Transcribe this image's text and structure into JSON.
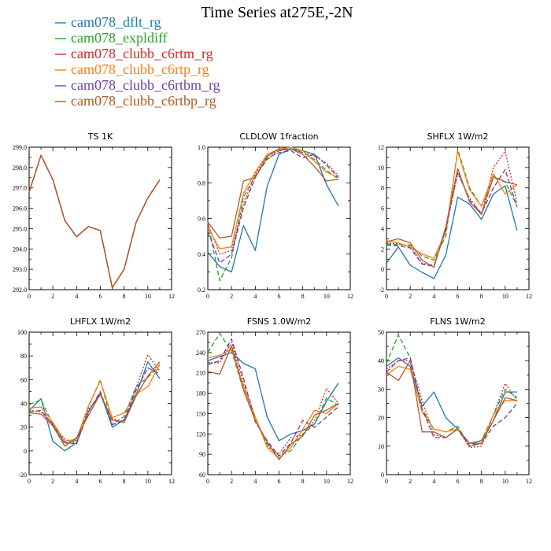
{
  "figure": {
    "title": "Time Series at275E,-2N"
  },
  "legend": [
    {
      "name": "cam078_dflt_rg",
      "color": "#1f77b4",
      "dash": "solid"
    },
    {
      "name": "cam078_expldiff",
      "color": "#2ca02c",
      "dash": "dashed"
    },
    {
      "name": "cam078_clubb_c6rtm_rg",
      "color": "#d62728",
      "dash": "dotted"
    },
    {
      "name": "cam078_clubb_c6rtp_rg",
      "color": "#ff7f0e",
      "dash": "solid"
    },
    {
      "name": "cam078_clubb_c6rtbm_rg",
      "color": "#7040a0",
      "dash": "dashed"
    },
    {
      "name": "cam078_clubb_c6rtbp_rg",
      "color": "#b05a28",
      "dash": "solid"
    }
  ],
  "chart_data": [
    {
      "type": "line",
      "title": "TS   1K",
      "xlim": [
        0,
        12
      ],
      "ylim": [
        292.0,
        299.0
      ],
      "xticks": [
        "0",
        "2",
        "4",
        "6",
        "8",
        "10",
        "12"
      ],
      "yticks": [
        "292.0",
        "293.0",
        "294.0",
        "295.0",
        "296.0",
        "297.0",
        "298.0",
        "299.0"
      ],
      "x": [
        0,
        1,
        2,
        3,
        4,
        5,
        6,
        7,
        8,
        9,
        10,
        11
      ],
      "series": [
        {
          "name": "cam078_dflt_rg",
          "values": [
            296.8,
            298.6,
            297.4,
            295.4,
            294.6,
            295.1,
            294.9,
            292.1,
            293.0,
            295.3,
            296.5,
            297.4
          ]
        },
        {
          "name": "cam078_expldiff",
          "values": [
            296.8,
            298.6,
            297.4,
            295.4,
            294.6,
            295.1,
            294.9,
            292.1,
            293.0,
            295.3,
            296.5,
            297.4
          ]
        },
        {
          "name": "cam078_clubb_c6rtm_rg",
          "values": [
            296.8,
            298.6,
            297.4,
            295.4,
            294.6,
            295.1,
            294.9,
            292.1,
            293.0,
            295.3,
            296.5,
            297.4
          ]
        },
        {
          "name": "cam078_clubb_c6rtp_rg",
          "values": [
            296.8,
            298.6,
            297.4,
            295.4,
            294.6,
            295.1,
            294.9,
            292.1,
            293.0,
            295.3,
            296.5,
            297.4
          ]
        },
        {
          "name": "cam078_clubb_c6rtbm_rg",
          "values": [
            296.8,
            298.6,
            297.4,
            295.4,
            294.6,
            295.1,
            294.9,
            292.1,
            293.0,
            295.3,
            296.5,
            297.4
          ]
        },
        {
          "name": "cam078_clubb_c6rtbp_rg",
          "values": [
            296.8,
            298.6,
            297.4,
            295.4,
            294.6,
            295.1,
            294.9,
            292.1,
            293.0,
            295.3,
            296.5,
            297.4
          ]
        }
      ]
    },
    {
      "type": "line",
      "title": "CLDLOW   1fraction",
      "xlim": [
        0,
        12
      ],
      "ylim": [
        0.2,
        1.0
      ],
      "xticks": [
        "0",
        "2",
        "4",
        "6",
        "8",
        "10",
        "12"
      ],
      "yticks": [
        "0.2",
        "0.4",
        "0.6",
        "0.8",
        "1.0"
      ],
      "x": [
        0,
        1,
        2,
        3,
        4,
        5,
        6,
        7,
        8,
        9,
        10,
        11
      ],
      "series": [
        {
          "name": "cam078_dflt_rg",
          "values": [
            0.41,
            0.33,
            0.3,
            0.56,
            0.42,
            0.78,
            0.96,
            0.99,
            0.98,
            0.96,
            0.79,
            0.67
          ]
        },
        {
          "name": "cam078_expldiff",
          "values": [
            0.58,
            0.25,
            0.38,
            0.72,
            0.84,
            0.93,
            0.98,
            0.99,
            0.97,
            0.93,
            0.87,
            0.82
          ]
        },
        {
          "name": "cam078_clubb_c6rtm_rg",
          "values": [
            0.57,
            0.4,
            0.42,
            0.68,
            0.85,
            0.95,
            0.98,
            0.99,
            0.97,
            0.95,
            0.91,
            0.84
          ]
        },
        {
          "name": "cam078_clubb_c6rtp_rg",
          "values": [
            0.55,
            0.43,
            0.44,
            0.74,
            0.86,
            0.96,
            0.99,
            1.0,
            0.98,
            0.92,
            0.86,
            0.83
          ]
        },
        {
          "name": "cam078_clubb_c6rtbm_rg",
          "values": [
            0.53,
            0.35,
            0.4,
            0.66,
            0.83,
            0.94,
            0.97,
            0.98,
            0.94,
            0.96,
            0.9,
            0.83
          ]
        },
        {
          "name": "cam078_clubb_c6rtbp_rg",
          "values": [
            0.58,
            0.49,
            0.5,
            0.81,
            0.83,
            0.95,
            0.99,
            0.99,
            0.96,
            0.89,
            0.81,
            0.82
          ]
        }
      ]
    },
    {
      "type": "line",
      "title": "SHFLX   1W/m2",
      "xlim": [
        0,
        12
      ],
      "ylim": [
        -2,
        12
      ],
      "xticks": [
        "0",
        "2",
        "4",
        "6",
        "8",
        "10",
        "12"
      ],
      "yticks": [
        "-2",
        "0",
        "2",
        "4",
        "6",
        "8",
        "10",
        "12"
      ],
      "x": [
        0,
        1,
        2,
        3,
        4,
        5,
        6,
        7,
        8,
        9,
        10,
        11
      ],
      "series": [
        {
          "name": "cam078_dflt_rg",
          "values": [
            0.6,
            2.2,
            0.4,
            -0.3,
            -0.9,
            1.4,
            7.1,
            6.4,
            4.9,
            7.4,
            8.2,
            3.8
          ]
        },
        {
          "name": "cam078_expldiff",
          "values": [
            2.5,
            2.4,
            2.4,
            1.3,
            0.9,
            3.3,
            11.8,
            8.0,
            6.2,
            9.0,
            8.6,
            6.2
          ]
        },
        {
          "name": "cam078_clubb_c6rtm_rg",
          "values": [
            2.6,
            2.5,
            2.3,
            0.6,
            0.4,
            4.0,
            9.4,
            7.0,
            5.4,
            10.0,
            11.6,
            6.5
          ]
        },
        {
          "name": "cam078_clubb_c6rtp_rg",
          "values": [
            2.8,
            2.6,
            2.2,
            1.5,
            1.1,
            3.7,
            11.6,
            7.8,
            6.2,
            9.4,
            7.4,
            8.3
          ]
        },
        {
          "name": "cam078_clubb_c6rtbm_rg",
          "values": [
            2.4,
            2.3,
            2.1,
            0.5,
            0.3,
            3.9,
            9.6,
            6.8,
            5.5,
            8.0,
            9.8,
            6.1
          ]
        },
        {
          "name": "cam078_clubb_c6rtbp_rg",
          "values": [
            2.7,
            3.0,
            2.6,
            0.9,
            0.2,
            4.2,
            9.9,
            6.6,
            5.4,
            9.1,
            8.6,
            8.3
          ]
        }
      ]
    },
    {
      "type": "line",
      "title": "LHFLX   1W/m2",
      "xlim": [
        0,
        12
      ],
      "ylim": [
        -20,
        100
      ],
      "xticks": [
        "0",
        "2",
        "4",
        "6",
        "8",
        "10",
        "12"
      ],
      "yticks": [
        "-20",
        "0",
        "20",
        "40",
        "60",
        "80",
        "100"
      ],
      "x": [
        0,
        1,
        2,
        3,
        4,
        5,
        6,
        7,
        8,
        9,
        10,
        11
      ],
      "series": [
        {
          "name": "cam078_dflt_rg",
          "values": [
            34,
            44,
            8,
            0,
            7,
            33,
            49,
            20,
            26,
            47,
            75,
            61
          ]
        },
        {
          "name": "cam078_expldiff",
          "values": [
            39,
            43,
            22,
            6,
            9,
            37,
            60,
            22,
            29,
            54,
            62,
            72
          ]
        },
        {
          "name": "cam078_clubb_c6rtm_rg",
          "values": [
            34,
            33,
            22,
            10,
            6,
            35,
            47,
            27,
            25,
            53,
            81,
            67
          ]
        },
        {
          "name": "cam078_clubb_c6rtp_rg",
          "values": [
            36,
            37,
            24,
            8,
            10,
            38,
            59,
            28,
            32,
            48,
            54,
            73
          ]
        },
        {
          "name": "cam078_clubb_c6rtbm_rg",
          "values": [
            33,
            34,
            22,
            7,
            6,
            33,
            50,
            22,
            26,
            51,
            70,
            65
          ]
        },
        {
          "name": "cam078_clubb_c6rtbp_rg",
          "values": [
            32,
            31,
            21,
            4,
            11,
            30,
            48,
            26,
            24,
            46,
            63,
            75
          ]
        }
      ]
    },
    {
      "type": "line",
      "title": "FSNS   1.0W/m2",
      "xlim": [
        0,
        12
      ],
      "ylim": [
        60,
        270
      ],
      "xticks": [
        "0",
        "2",
        "4",
        "6",
        "8",
        "10",
        "12"
      ],
      "yticks": [
        "60",
        "90",
        "120",
        "150",
        "180",
        "210",
        "240",
        "270"
      ],
      "x": [
        0,
        1,
        2,
        3,
        4,
        5,
        6,
        7,
        8,
        9,
        10,
        11
      ],
      "series": [
        {
          "name": "cam078_dflt_rg",
          "values": [
            228,
            234,
            240,
            224,
            216,
            145,
            110,
            120,
            125,
            135,
            168,
            195
          ]
        },
        {
          "name": "cam078_expldiff",
          "values": [
            240,
            268,
            242,
            185,
            140,
            105,
            88,
            95,
            120,
            135,
            173,
            162
          ]
        },
        {
          "name": "cam078_clubb_c6rtm_rg",
          "values": [
            225,
            225,
            255,
            195,
            145,
            102,
            90,
            115,
            118,
            140,
            187,
            165
          ]
        },
        {
          "name": "cam078_clubb_c6rtp_rg",
          "values": [
            232,
            236,
            245,
            190,
            145,
            100,
            84,
            100,
            127,
            155,
            150,
            165
          ]
        },
        {
          "name": "cam078_clubb_c6rtbm_rg",
          "values": [
            222,
            228,
            260,
            202,
            138,
            110,
            87,
            107,
            140,
            130,
            145,
            160
          ]
        },
        {
          "name": "cam078_clubb_c6rtbp_rg",
          "values": [
            212,
            208,
            250,
            185,
            140,
            108,
            82,
            105,
            117,
            148,
            155,
            165
          ]
        }
      ]
    },
    {
      "type": "line",
      "title": "FLNS   1W/m2",
      "xlim": [
        0,
        12
      ],
      "ylim": [
        0,
        50
      ],
      "xticks": [
        "0",
        "2",
        "4",
        "6",
        "8",
        "10",
        "12"
      ],
      "yticks": [
        "0",
        "10",
        "20",
        "30",
        "40",
        "50"
      ],
      "x": [
        0,
        1,
        2,
        3,
        4,
        5,
        6,
        7,
        8,
        9,
        10,
        11
      ],
      "series": [
        {
          "name": "cam078_dflt_rg",
          "values": [
            38,
            41,
            38,
            24,
            29,
            20,
            16,
            11,
            12,
            19,
            29,
            29
          ]
        },
        {
          "name": "cam078_expldiff",
          "values": [
            39,
            49,
            41,
            23,
            16,
            15,
            17,
            10,
            12,
            21,
            30,
            27
          ]
        },
        {
          "name": "cam078_clubb_c6rtm_rg",
          "values": [
            37,
            40,
            40,
            26,
            14,
            13,
            16,
            9.5,
            10,
            21,
            32,
            26
          ]
        },
        {
          "name": "cam078_clubb_c6rtp_rg",
          "values": [
            35,
            38,
            37,
            22,
            16,
            15,
            16,
            10,
            11,
            21,
            26,
            26
          ]
        },
        {
          "name": "cam078_clubb_c6rtbm_rg",
          "values": [
            36,
            40,
            41,
            23,
            13,
            13,
            16,
            10,
            11,
            17,
            20,
            25
          ]
        },
        {
          "name": "cam078_clubb_c6rtbp_rg",
          "values": [
            36,
            33,
            40,
            15,
            15,
            13,
            16,
            11,
            11,
            19,
            27,
            26
          ]
        }
      ]
    }
  ]
}
